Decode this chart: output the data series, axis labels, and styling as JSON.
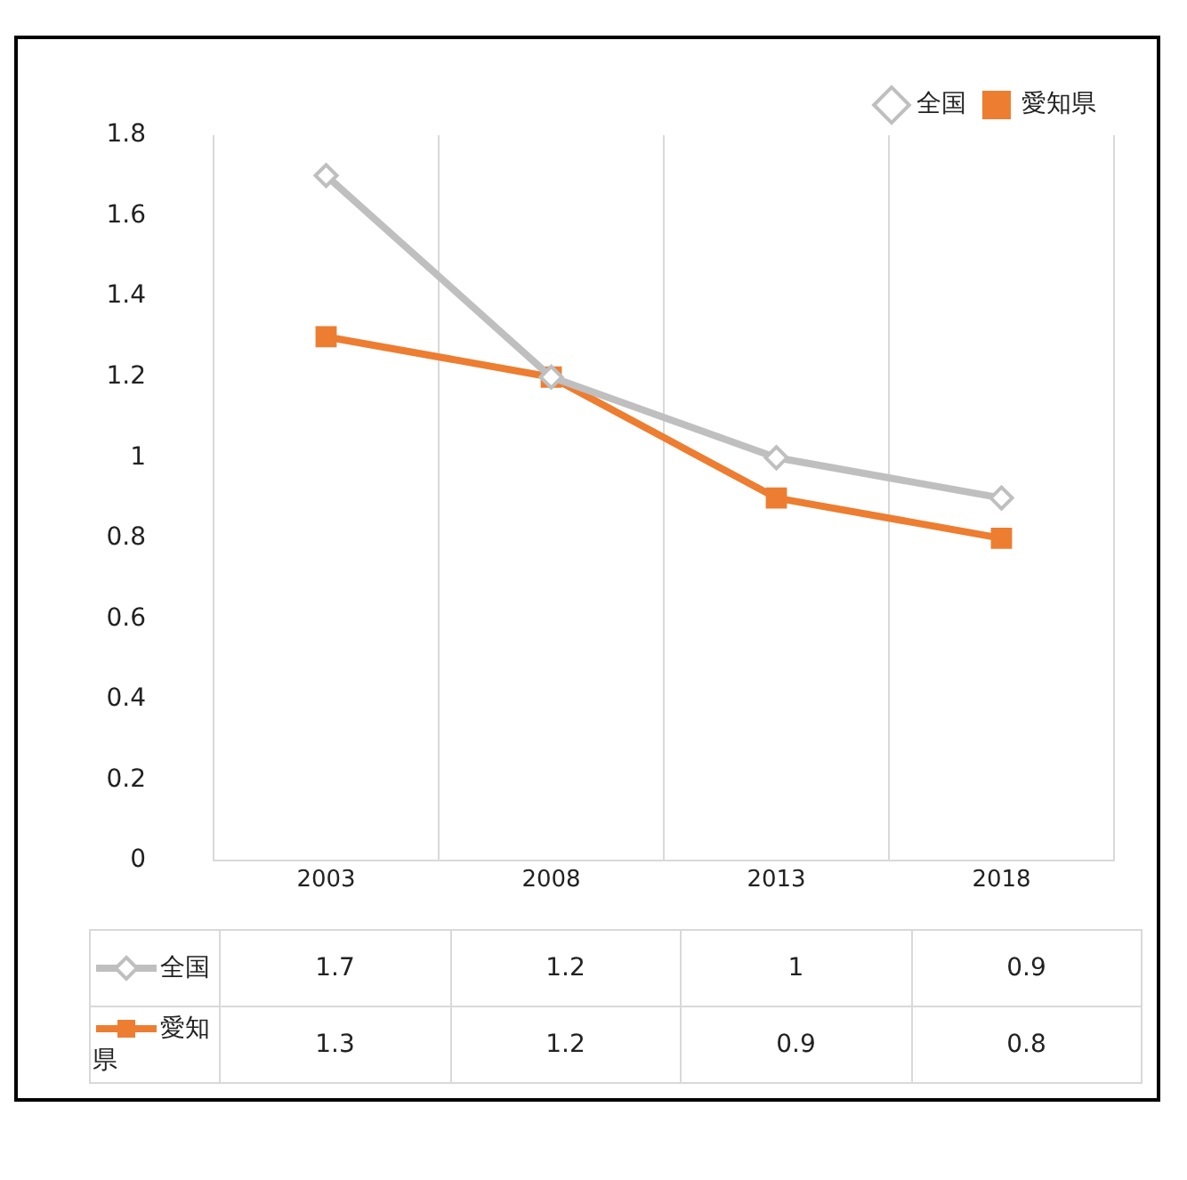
{
  "chart_data": {
    "type": "line",
    "categories": [
      "2003",
      "2008",
      "2013",
      "2018"
    ],
    "series": [
      {
        "name": "全国",
        "color": "#bfbfbf",
        "marker": "diamond",
        "values": [
          1.7,
          1.2,
          1,
          0.9
        ]
      },
      {
        "name": "愛知県",
        "color": "#ed7d31",
        "marker": "square",
        "values": [
          1.3,
          1.2,
          0.9,
          0.8
        ]
      }
    ],
    "ylim": [
      0,
      1.8
    ],
    "yticks": [
      0,
      0.2,
      0.4,
      0.6,
      0.8,
      1,
      1.2,
      1.4,
      1.6,
      1.8
    ],
    "grid": "x",
    "legend": "top right",
    "data_labels": true
  }
}
